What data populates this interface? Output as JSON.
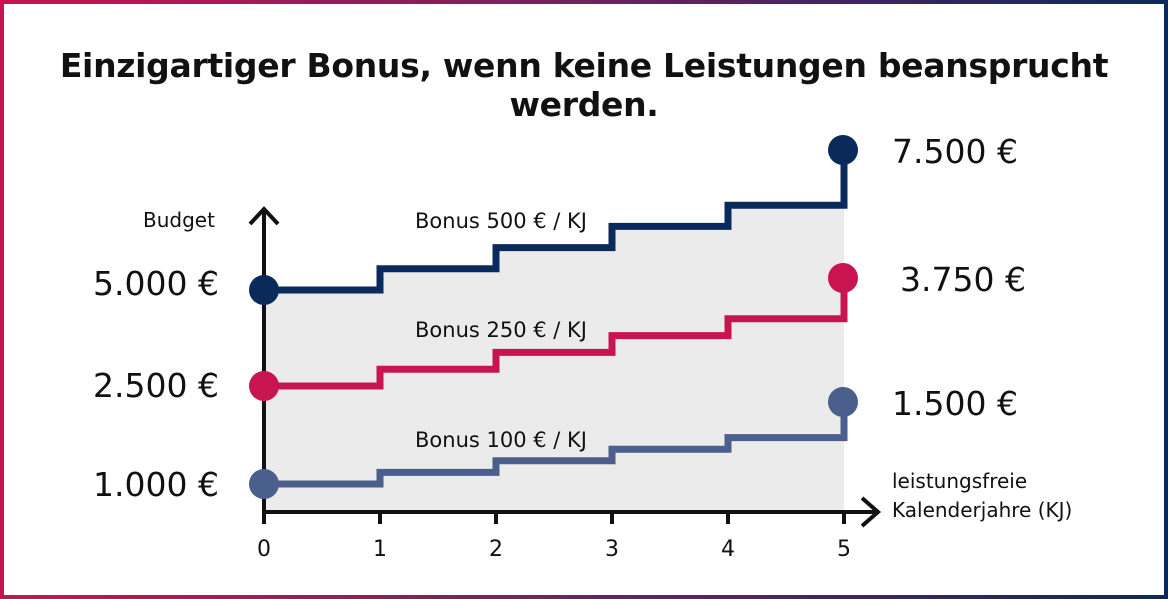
{
  "title": "Einzigartiger Bonus, wenn keine Leistungen beansprucht werden.",
  "chart_data": {
    "type": "line",
    "step": true,
    "ylabel": "Budget",
    "xlabel": "leistungsfreie\nKalenderjahre (KJ)",
    "xlabel_lines": [
      "leistungsfreie",
      "Kalenderjahre (KJ)"
    ],
    "x": [
      0,
      1,
      2,
      3,
      4,
      5
    ],
    "x_tick_labels": [
      "0",
      "1",
      "2",
      "3",
      "4",
      "5"
    ],
    "series": [
      {
        "name": "Bonus 500 € / KJ",
        "values": [
          5000,
          5500,
          6000,
          6500,
          7000,
          7500
        ],
        "start_label": "5.000 €",
        "end_label": "7.500 €",
        "color": "#0b2a5c"
      },
      {
        "name": "Bonus 250 € / KJ",
        "values": [
          2500,
          2750,
          3000,
          3250,
          3500,
          3750
        ],
        "start_label": "2.500 €",
        "end_label": "3.750 €",
        "color": "#c8144f"
      },
      {
        "name": "Bonus 100 € / KJ",
        "values": [
          1000,
          1100,
          1200,
          1300,
          1400,
          1500
        ],
        "start_label": "1.000 €",
        "end_label": "1.500 €",
        "color": "#4a5f8c"
      }
    ],
    "area_color": "#ebebeb",
    "grid": false,
    "legend": "none"
  }
}
